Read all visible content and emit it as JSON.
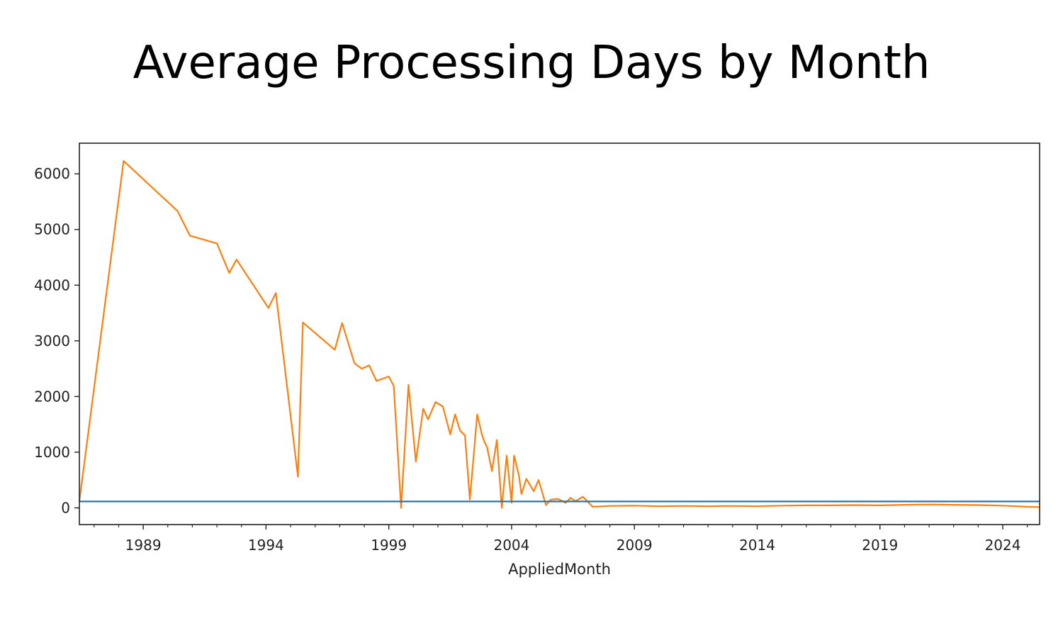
{
  "chart_data": {
    "type": "line",
    "title": "Average Processing Days by Month",
    "xlabel": "AppliedMonth",
    "ylabel": "",
    "xlim": [
      1986.4,
      2025.5
    ],
    "ylim": [
      -300,
      6550
    ],
    "x_ticks": [
      1989,
      1994,
      1999,
      2004,
      2009,
      2014,
      2019,
      2024
    ],
    "y_ticks": [
      0,
      1000,
      2000,
      3000,
      4000,
      5000,
      6000
    ],
    "grid": false,
    "legend": "none",
    "colors": {
      "series1": "#ff7f0e",
      "series2": "#1f77b4",
      "axis": "#222222"
    },
    "series": [
      {
        "color": "#ff7f0e",
        "x": [
          1986.4,
          1988.2,
          1990.4,
          1990.9,
          1992.0,
          1992.5,
          1992.8,
          1994.1,
          1994.4,
          1995.3,
          1995.5,
          1996.8,
          1997.1,
          1997.6,
          1997.9,
          1998.2,
          1998.5,
          1999.0,
          1999.2,
          1999.5,
          1999.8,
          2000.1,
          2000.4,
          2000.6,
          2000.9,
          2001.2,
          2001.5,
          2001.7,
          2001.9,
          2002.1,
          2002.3,
          2002.6,
          2002.8,
          2002.9,
          2003.0,
          2003.2,
          2003.4,
          2003.6,
          2003.8,
          2004.0,
          2004.1,
          2004.3,
          2004.4,
          2004.6,
          2004.9,
          2005.1,
          2005.4,
          2005.6,
          2005.9,
          2006.2,
          2006.4,
          2006.6,
          2006.9,
          2007.3,
          2008.0,
          2009.0,
          2010.0,
          2011.0,
          2012.0,
          2013.0,
          2014.0,
          2015.0,
          2016.0,
          2017.0,
          2018.0,
          2019.0,
          2020.0,
          2021.0,
          2022.0,
          2023.0,
          2024.0,
          2025.0,
          2025.5
        ],
        "values": [
          120,
          6230,
          5330,
          4890,
          4750,
          4220,
          4460,
          3590,
          3860,
          560,
          3330,
          2840,
          3320,
          2600,
          2500,
          2560,
          2280,
          2360,
          2190,
          0,
          2210,
          830,
          1780,
          1590,
          1900,
          1820,
          1320,
          1680,
          1390,
          1300,
          150,
          1680,
          1300,
          1180,
          1090,
          660,
          1220,
          0,
          940,
          90,
          940,
          580,
          250,
          520,
          300,
          500,
          50,
          150,
          160,
          90,
          180,
          120,
          200,
          20,
          35,
          40,
          30,
          35,
          30,
          35,
          30,
          40,
          45,
          45,
          50,
          45,
          55,
          60,
          55,
          50,
          40,
          20,
          15
        ]
      },
      {
        "color": "#1f77b4",
        "x": [
          1986.4,
          2025.5
        ],
        "values": [
          115,
          115
        ]
      }
    ]
  }
}
